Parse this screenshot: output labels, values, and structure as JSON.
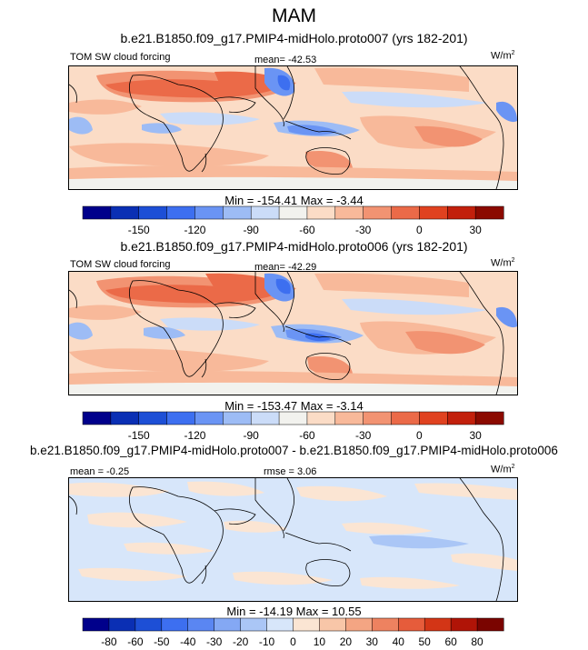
{
  "figure": {
    "title": "MAM",
    "panels": [
      {
        "title": "b.e21.B1850.f09_g17.PMIP4-midHolo.proto007 (yrs 182-201)",
        "left_label": "TOM SW cloud forcing",
        "center_label": "mean= -42.53",
        "units": "W/m",
        "units_sup": "2",
        "minmax": "Min = -154.41 Max =  -3.44",
        "colorbar": "abs"
      },
      {
        "title": "b.e21.B1850.f09_g17.PMIP4-midHolo.proto006 (yrs 182-201)",
        "left_label": "TOM SW cloud forcing",
        "center_label": "mean= -42.29",
        "units": "W/m",
        "units_sup": "2",
        "minmax": "Min = -153.47 Max =  -3.14",
        "colorbar": "abs"
      },
      {
        "title": "b.e21.B1850.f09_g17.PMIP4-midHolo.proto007 - b.e21.B1850.f09_g17.PMIP4-midHolo.proto006",
        "left_label": "mean =  -0.25",
        "center_label": "rmse =  3.06",
        "units": "W/m",
        "units_sup": "2",
        "minmax": "Min = -14.19 Max =  10.55",
        "colorbar": "diff"
      }
    ]
  },
  "chart_data": [
    {
      "type": "heatmap",
      "title": "b.e21.B1850.f09_g17.PMIP4-midHolo.proto007 (yrs 182-201)",
      "variable": "TOM SW cloud forcing",
      "units": "W/m2",
      "mean": -42.53,
      "min": -154.41,
      "max": -3.44,
      "colorbar_ticks": [
        "-150",
        "-120",
        "-90",
        "-60",
        "-30",
        "0",
        "30"
      ],
      "colorbar_colors": [
        "#00008b",
        "#0a2fb4",
        "#1d4fd6",
        "#3d6ff0",
        "#6a94f4",
        "#9dbcf5",
        "#cbdcf8",
        "#f2f2ee",
        "#fbdcc6",
        "#f8b99a",
        "#f29372",
        "#eb6a48",
        "#e04220",
        "#c2200c",
        "#8b0a00"
      ]
    },
    {
      "type": "heatmap",
      "title": "b.e21.B1850.f09_g17.PMIP4-midHolo.proto006 (yrs 182-201)",
      "variable": "TOM SW cloud forcing",
      "units": "W/m2",
      "mean": -42.29,
      "min": -153.47,
      "max": -3.14,
      "colorbar_ticks": [
        "-150",
        "-120",
        "-90",
        "-60",
        "-30",
        "0",
        "30"
      ],
      "colorbar_colors": [
        "#00008b",
        "#0a2fb4",
        "#1d4fd6",
        "#3d6ff0",
        "#6a94f4",
        "#9dbcf5",
        "#cbdcf8",
        "#f2f2ee",
        "#fbdcc6",
        "#f8b99a",
        "#f29372",
        "#eb6a48",
        "#e04220",
        "#c2200c",
        "#8b0a00"
      ]
    },
    {
      "type": "heatmap",
      "title": "b.e21.B1850.f09_g17.PMIP4-midHolo.proto007 - b.e21.B1850.f09_g17.PMIP4-midHolo.proto006",
      "units": "W/m2",
      "mean": -0.25,
      "rmse": 3.06,
      "min": -14.19,
      "max": 10.55,
      "colorbar_ticks": [
        "-80",
        "-60",
        "-50",
        "-40",
        "-30",
        "-20",
        "-10",
        "0",
        "10",
        "20",
        "30",
        "40",
        "50",
        "60",
        "80"
      ],
      "colorbar_colors": [
        "#00008b",
        "#0a2fb4",
        "#1d4fd6",
        "#3d6ff0",
        "#5a86f2",
        "#84a8f4",
        "#aac6f6",
        "#d7e6fa",
        "#fbe5d3",
        "#f8c6a8",
        "#f4a583",
        "#ee8260",
        "#e65c3b",
        "#d33516",
        "#b01407",
        "#7a0400"
      ]
    }
  ]
}
